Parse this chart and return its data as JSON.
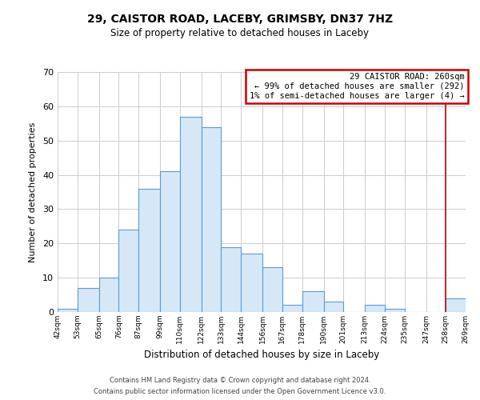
{
  "title": "29, CAISTOR ROAD, LACEBY, GRIMSBY, DN37 7HZ",
  "subtitle": "Size of property relative to detached houses in Laceby",
  "xlabel": "Distribution of detached houses by size in Laceby",
  "ylabel": "Number of detached properties",
  "footer_line1": "Contains HM Land Registry data © Crown copyright and database right 2024.",
  "footer_line2": "Contains public sector information licensed under the Open Government Licence v3.0.",
  "bin_edges": [
    42,
    53,
    65,
    76,
    87,
    99,
    110,
    122,
    133,
    144,
    156,
    167,
    178,
    190,
    201,
    213,
    224,
    235,
    247,
    258,
    269
  ],
  "counts": [
    1,
    7,
    10,
    24,
    36,
    41,
    57,
    54,
    19,
    17,
    13,
    2,
    6,
    3,
    0,
    2,
    1,
    0,
    0,
    4
  ],
  "bar_facecolor": "#d6e8f7",
  "bar_edgecolor": "#5b9bd5",
  "reference_line_x": 258,
  "reference_line_color": "#cc0000",
  "ylim": [
    0,
    70
  ],
  "yticks": [
    0,
    10,
    20,
    30,
    40,
    50,
    60,
    70
  ],
  "tick_labels": [
    "42sqm",
    "53sqm",
    "65sqm",
    "76sqm",
    "87sqm",
    "99sqm",
    "110sqm",
    "122sqm",
    "133sqm",
    "144sqm",
    "156sqm",
    "167sqm",
    "178sqm",
    "190sqm",
    "201sqm",
    "213sqm",
    "224sqm",
    "235sqm",
    "247sqm",
    "258sqm",
    "269sqm"
  ],
  "annotation_title": "29 CAISTOR ROAD: 260sqm",
  "annotation_line2": "← 99% of detached houses are smaller (292)",
  "annotation_line3": "1% of semi-detached houses are larger (4) →",
  "annotation_box_color": "#cc0000",
  "grid_color": "#cccccc",
  "background_color": "#ffffff",
  "title_fontsize": 10,
  "subtitle_fontsize": 8.5,
  "xlabel_fontsize": 8.5,
  "ylabel_fontsize": 8,
  "xtick_fontsize": 6.5,
  "ytick_fontsize": 8,
  "annot_fontsize": 7.5,
  "footer_fontsize": 6
}
